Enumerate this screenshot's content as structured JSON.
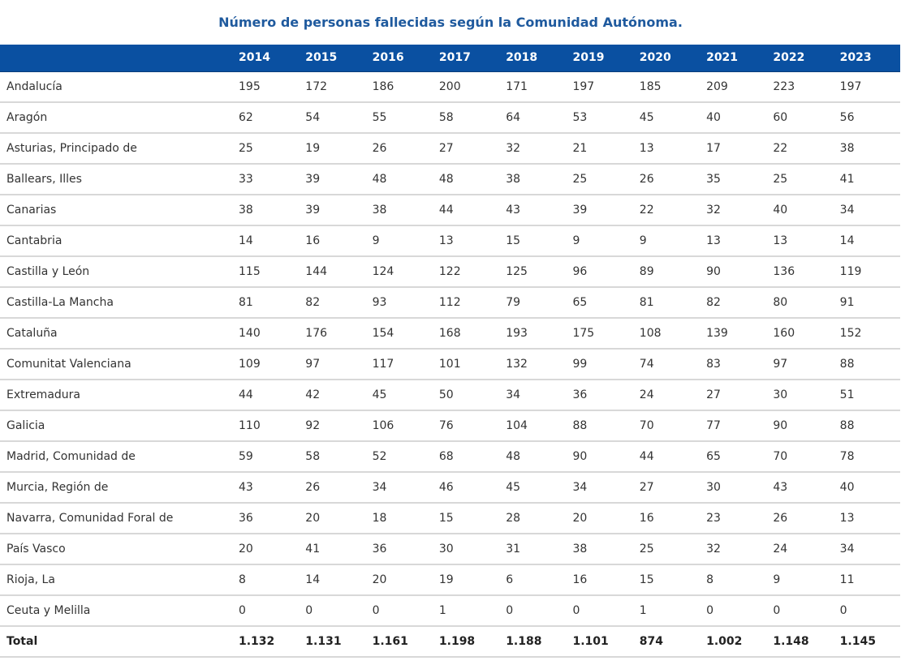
{
  "title": "Número de personas fallecidas según la Comunidad Autónoma.",
  "table": {
    "corner_header": "",
    "years": [
      "2014",
      "2015",
      "2016",
      "2017",
      "2018",
      "2019",
      "2020",
      "2021",
      "2022",
      "2023"
    ],
    "rows": [
      {
        "region": "Andalucía",
        "values": [
          "195",
          "172",
          "186",
          "200",
          "171",
          "197",
          "185",
          "209",
          "223",
          "197"
        ]
      },
      {
        "region": "Aragón",
        "values": [
          "62",
          "54",
          "55",
          "58",
          "64",
          "53",
          "45",
          "40",
          "60",
          "56"
        ]
      },
      {
        "region": "Asturias, Principado de",
        "values": [
          "25",
          "19",
          "26",
          "27",
          "32",
          "21",
          "13",
          "17",
          "22",
          "38"
        ]
      },
      {
        "region": "Ballears, Illes",
        "values": [
          "33",
          "39",
          "48",
          "48",
          "38",
          "25",
          "26",
          "35",
          "25",
          "41"
        ]
      },
      {
        "region": "Canarias",
        "values": [
          "38",
          "39",
          "38",
          "44",
          "43",
          "39",
          "22",
          "32",
          "40",
          "34"
        ]
      },
      {
        "region": "Cantabria",
        "values": [
          "14",
          "16",
          "9",
          "13",
          "15",
          "9",
          "9",
          "13",
          "13",
          "14"
        ]
      },
      {
        "region": "Castilla y León",
        "values": [
          "115",
          "144",
          "124",
          "122",
          "125",
          "96",
          "89",
          "90",
          "136",
          "119"
        ]
      },
      {
        "region": "Castilla-La Mancha",
        "values": [
          "81",
          "82",
          "93",
          "112",
          "79",
          "65",
          "81",
          "82",
          "80",
          "91"
        ]
      },
      {
        "region": "Cataluña",
        "values": [
          "140",
          "176",
          "154",
          "168",
          "193",
          "175",
          "108",
          "139",
          "160",
          "152"
        ]
      },
      {
        "region": "Comunitat Valenciana",
        "values": [
          "109",
          "97",
          "117",
          "101",
          "132",
          "99",
          "74",
          "83",
          "97",
          "88"
        ]
      },
      {
        "region": "Extremadura",
        "values": [
          "44",
          "42",
          "45",
          "50",
          "34",
          "36",
          "24",
          "27",
          "30",
          "51"
        ]
      },
      {
        "region": "Galicia",
        "values": [
          "110",
          "92",
          "106",
          "76",
          "104",
          "88",
          "70",
          "77",
          "90",
          "88"
        ]
      },
      {
        "region": "Madrid, Comunidad de",
        "values": [
          "59",
          "58",
          "52",
          "68",
          "48",
          "90",
          "44",
          "65",
          "70",
          "78"
        ]
      },
      {
        "region": "Murcia, Región de",
        "values": [
          "43",
          "26",
          "34",
          "46",
          "45",
          "34",
          "27",
          "30",
          "43",
          "40"
        ]
      },
      {
        "region": "Navarra, Comunidad Foral de",
        "values": [
          "36",
          "20",
          "18",
          "15",
          "28",
          "20",
          "16",
          "23",
          "26",
          "13"
        ]
      },
      {
        "region": "País Vasco",
        "values": [
          "20",
          "41",
          "36",
          "30",
          "31",
          "38",
          "25",
          "32",
          "24",
          "34"
        ]
      },
      {
        "region": "Rioja, La",
        "values": [
          "8",
          "14",
          "20",
          "19",
          "6",
          "16",
          "15",
          "8",
          "9",
          "11"
        ]
      },
      {
        "region": "Ceuta y Melilla",
        "values": [
          "0",
          "0",
          "0",
          "1",
          "0",
          "0",
          "1",
          "0",
          "0",
          "0"
        ]
      },
      {
        "region": "Total",
        "values": [
          "1.132",
          "1.131",
          "1.161",
          "1.198",
          "1.188",
          "1.101",
          "874",
          "1.002",
          "1.148",
          "1.145"
        ],
        "is_total": true
      }
    ]
  },
  "colors": {
    "title": "#1f5a9e",
    "header_background": "#0a50a1",
    "header_text": "#ffffff",
    "row_separator": "#d8d8d8"
  }
}
